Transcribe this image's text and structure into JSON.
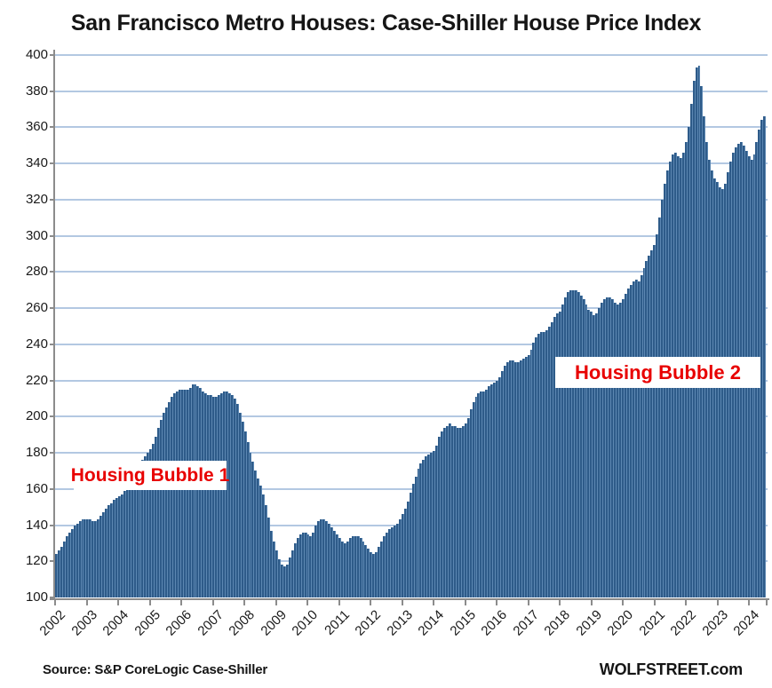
{
  "title": "San Francisco Metro Houses: Case-Shiller House Price Index",
  "annotations": {
    "bubble1": "Housing Bubble 1",
    "bubble2": "Housing Bubble 2"
  },
  "footer": {
    "source": "Source: S&P CoreLogic Case-Shiller",
    "site": "WOLFSTREET.com"
  },
  "colors": {
    "bar": "#2e5b89",
    "bar_separator": "#5c87b2",
    "gridline": "#b3c8e2",
    "axis": "#8c8c8c",
    "annotation_red": "#e80000",
    "text": "#151515"
  },
  "chart_data": {
    "type": "bar",
    "title": "San Francisco Metro Houses: Case-Shiller House Price Index",
    "xlabel": "",
    "ylabel": "",
    "frequency": "monthly",
    "x_start": "2002-01",
    "x_end": "2024-07",
    "ylim": [
      100,
      400
    ],
    "ytick_step": 20,
    "yticks": [
      400,
      380,
      360,
      340,
      320,
      300,
      280,
      260,
      240,
      220,
      200,
      180,
      160,
      140,
      120,
      100
    ],
    "xticks_years": [
      2002,
      2003,
      2004,
      2005,
      2006,
      2007,
      2008,
      2009,
      2010,
      2011,
      2012,
      2013,
      2014,
      2015,
      2016,
      2017,
      2018,
      2019,
      2020,
      2021,
      2022,
      2023,
      2024
    ],
    "grid": "horizontal",
    "legend": "none",
    "annotations": [
      {
        "text": "Housing Bubble 1",
        "x": "2004-06",
        "y": 170
      },
      {
        "text": "Housing Bubble 2",
        "x": "2019-10",
        "y": 225
      }
    ],
    "values": [
      124,
      126,
      128,
      131,
      134,
      136,
      138,
      140,
      141,
      142,
      143,
      143,
      143,
      143,
      142,
      142,
      143,
      145,
      147,
      149,
      151,
      152,
      154,
      155,
      156,
      157,
      159,
      162,
      165,
      168,
      170,
      172,
      174,
      176,
      178,
      180,
      182,
      185,
      189,
      194,
      198,
      202,
      205,
      208,
      211,
      213,
      214,
      215,
      215,
      215,
      215,
      216,
      218,
      218,
      217,
      216,
      214,
      213,
      212,
      212,
      211,
      211,
      212,
      213,
      214,
      214,
      213,
      212,
      210,
      207,
      202,
      197,
      192,
      186,
      180,
      175,
      170,
      166,
      162,
      157,
      151,
      144,
      137,
      131,
      126,
      121,
      118,
      117,
      118,
      122,
      126,
      130,
      133,
      135,
      136,
      136,
      135,
      134,
      136,
      140,
      142,
      143,
      143,
      142,
      141,
      139,
      137,
      135,
      133,
      131,
      130,
      131,
      133,
      134,
      134,
      134,
      133,
      131,
      129,
      127,
      125,
      124,
      125,
      128,
      131,
      134,
      136,
      138,
      139,
      140,
      141,
      143,
      146,
      149,
      153,
      158,
      163,
      167,
      171,
      174,
      176,
      178,
      179,
      180,
      181,
      184,
      189,
      192,
      194,
      195,
      196,
      195,
      195,
      194,
      194,
      195,
      196,
      199,
      204,
      208,
      211,
      213,
      214,
      214,
      215,
      217,
      218,
      219,
      220,
      222,
      225,
      228,
      230,
      231,
      231,
      230,
      230,
      231,
      232,
      233,
      234,
      237,
      241,
      244,
      246,
      247,
      247,
      248,
      250,
      252,
      255,
      257,
      258,
      262,
      266,
      269,
      270,
      270,
      270,
      269,
      267,
      265,
      262,
      259,
      258,
      256,
      257,
      260,
      263,
      265,
      266,
      266,
      265,
      263,
      262,
      263,
      265,
      268,
      271,
      273,
      275,
      276,
      275,
      278,
      282,
      286,
      289,
      292,
      295,
      301,
      310,
      320,
      329,
      336,
      341,
      345,
      346,
      344,
      343,
      346,
      352,
      360,
      373,
      386,
      393,
      394,
      383,
      366,
      352,
      342,
      336,
      332,
      330,
      327,
      326,
      329,
      335,
      341,
      346,
      349,
      351,
      352,
      350,
      347,
      344,
      342,
      345,
      352,
      359,
      364,
      366
    ]
  }
}
